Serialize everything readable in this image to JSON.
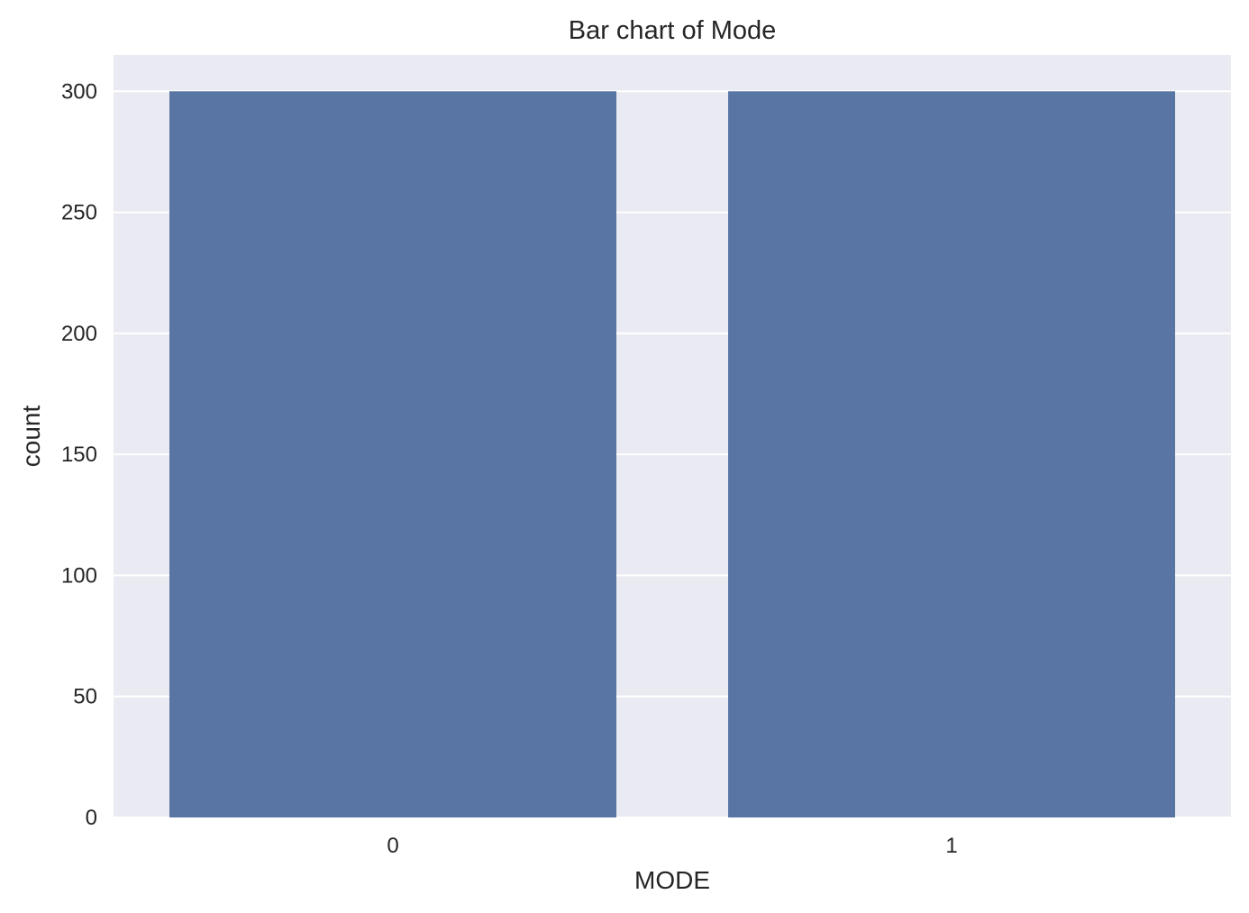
{
  "chart_data": {
    "type": "bar",
    "title": "Bar chart of Mode",
    "xlabel": "MODE",
    "ylabel": "count",
    "categories": [
      "0",
      "1"
    ],
    "values": [
      300,
      300
    ],
    "ylim": [
      0,
      315
    ],
    "yticks": [
      0,
      50,
      100,
      150,
      200,
      250,
      300
    ],
    "grid": true,
    "colors": {
      "bar": "#5975a4",
      "background": "#eaeaf2",
      "grid": "#ffffff",
      "text": "#262626"
    }
  }
}
